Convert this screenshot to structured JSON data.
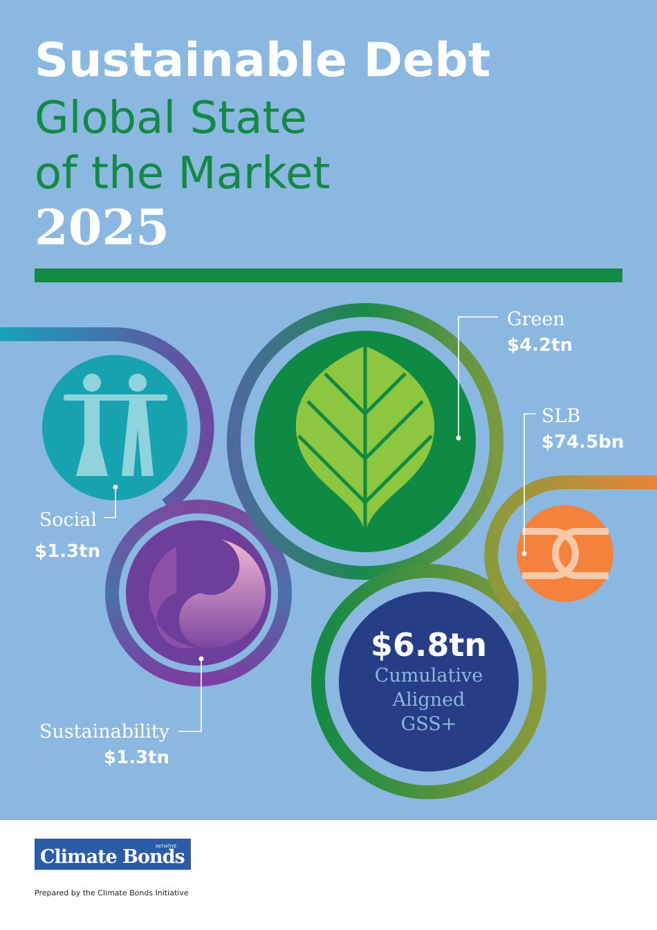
{
  "title": {
    "line1": "Sustainable Debt",
    "line2": "Global State",
    "line3": "of the Market",
    "year": "2025"
  },
  "segments": [
    {
      "label": "Green",
      "amount": "$4.2tn"
    },
    {
      "label": "SLB",
      "amount": "$74.5bn"
    },
    {
      "label": "Social",
      "amount": "$1.3tn"
    },
    {
      "label": "Sustainability",
      "amount": "$1.3tn"
    }
  ],
  "total": {
    "amount": "$6.8tn",
    "caption": [
      "Cumulative",
      "Aligned",
      "GSS+"
    ]
  },
  "logo": {
    "name": "Climate Bonds",
    "tag": "INITIATIVE"
  },
  "footer": "Prepared by the Climate Bonds Initiative"
}
